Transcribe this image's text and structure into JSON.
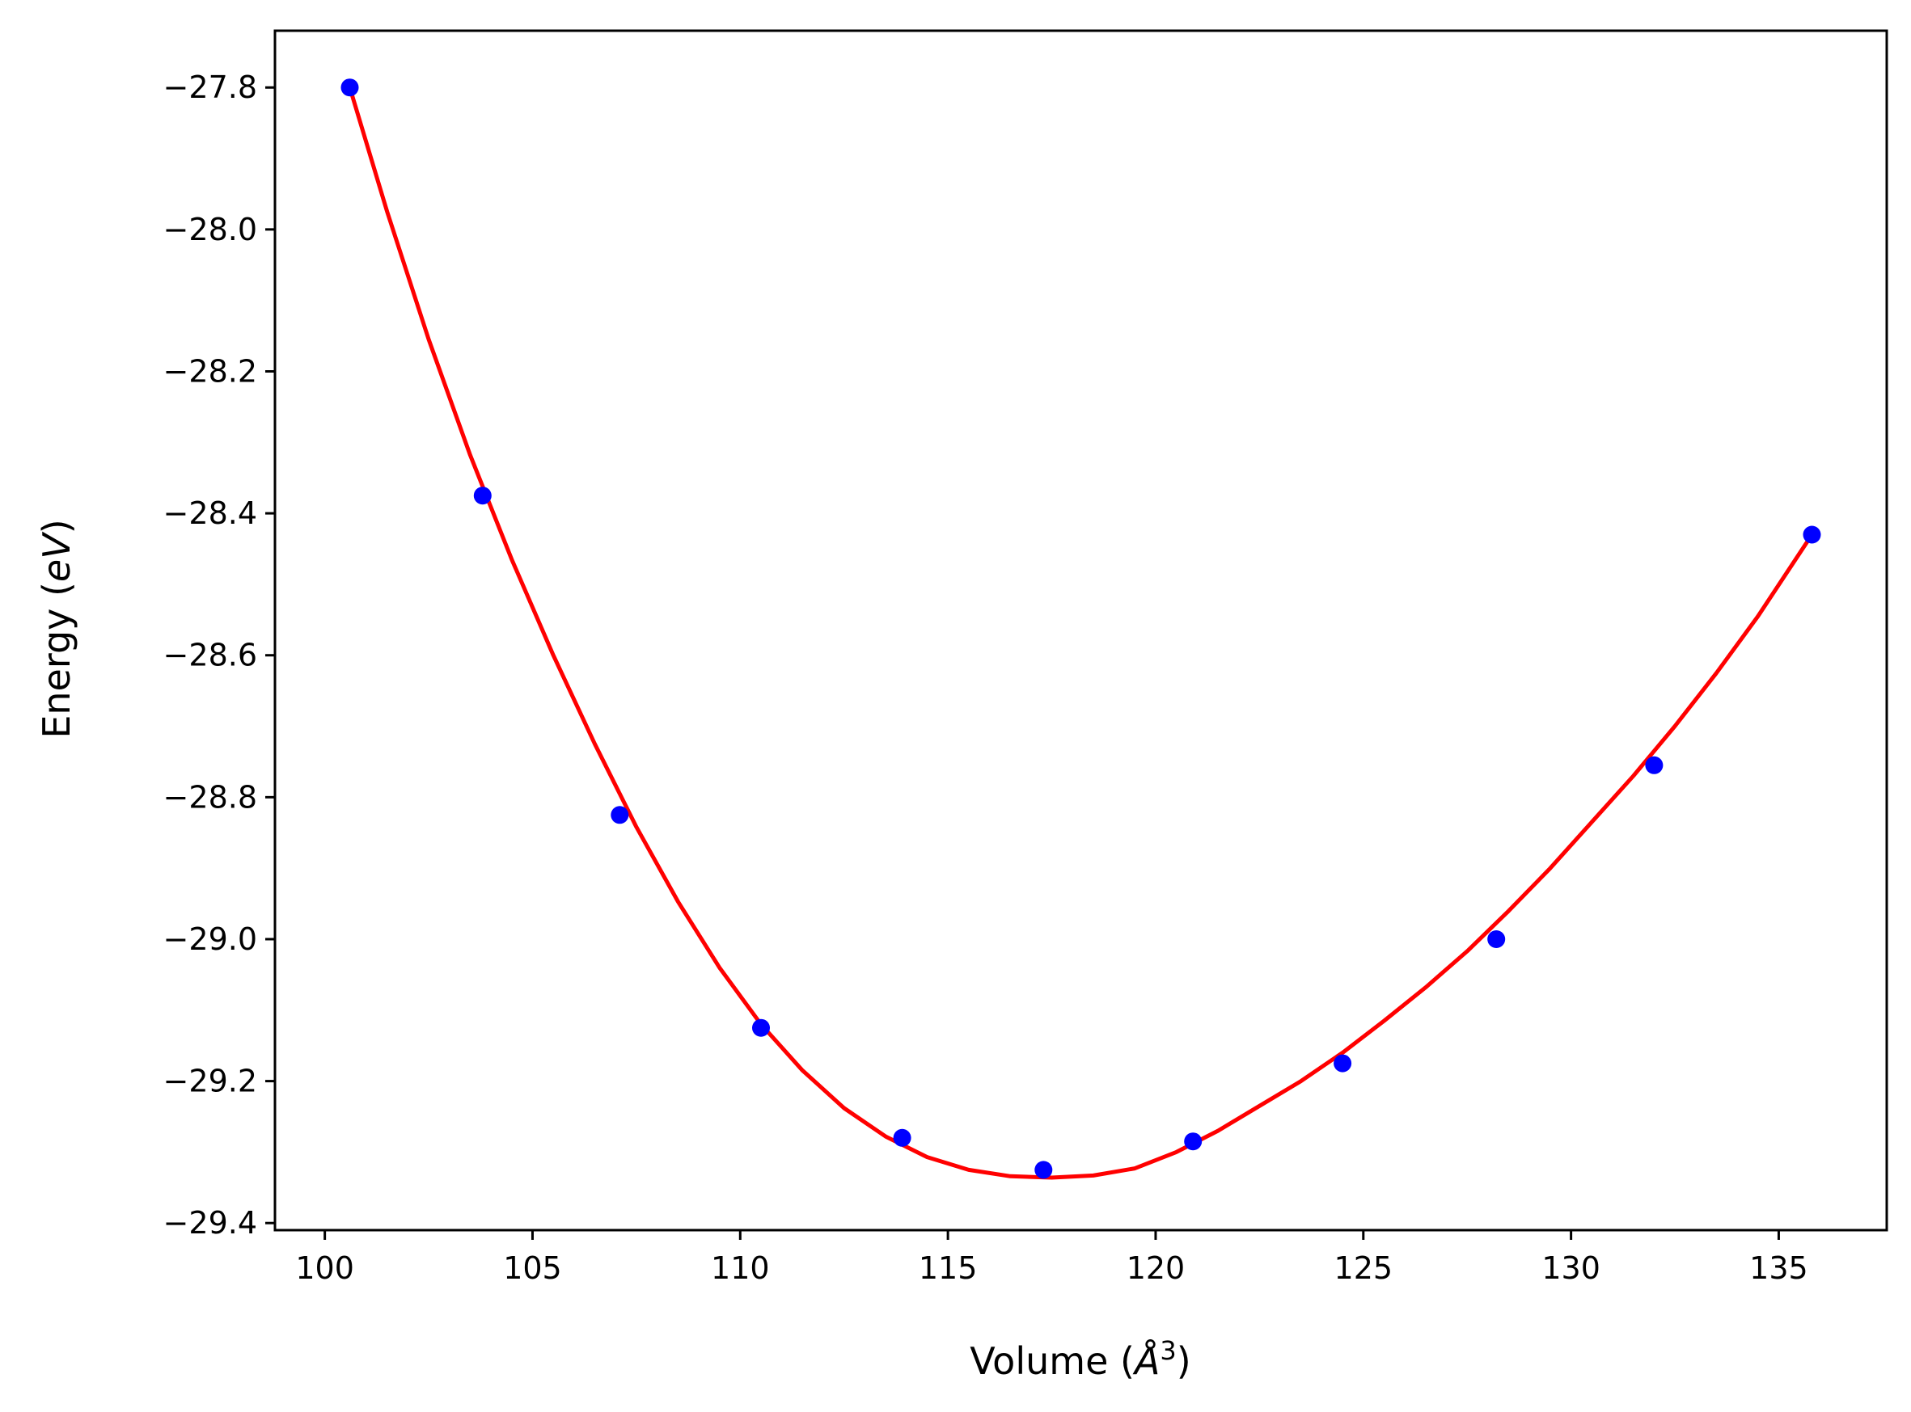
{
  "chart_data": {
    "type": "line",
    "title": "",
    "xlabel_parts": {
      "prefix": "Volume (",
      "symbol": "Å",
      "sup": "3",
      "suffix": ")"
    },
    "ylabel_parts": {
      "prefix": "Energy (",
      "unit": "eV",
      "suffix": ")"
    },
    "xlim": [
      98.8,
      137.6
    ],
    "ylim": [
      -29.41,
      -27.72
    ],
    "xticks": [
      100,
      105,
      110,
      115,
      120,
      125,
      130,
      135
    ],
    "xtick_labels": [
      "100",
      "105",
      "110",
      "115",
      "120",
      "125",
      "130",
      "135"
    ],
    "yticks": [
      -27.8,
      -28.0,
      -28.2,
      -28.4,
      -28.6,
      -28.8,
      -29.0,
      -29.2,
      -29.4
    ],
    "ytick_labels": [
      "−27.8",
      "−28.0",
      "−28.2",
      "−28.4",
      "−28.6",
      "−28.8",
      "−29.0",
      "−29.2",
      "−29.4"
    ],
    "grid": false,
    "series": [
      {
        "kind": "scatter",
        "color": "#0000ff",
        "x": [
          100.6,
          103.8,
          107.1,
          110.5,
          113.9,
          117.3,
          120.9,
          124.5,
          128.2,
          132.0,
          135.8
        ],
        "y": [
          -27.8,
          -28.375,
          -28.825,
          -29.125,
          -29.28,
          -29.325,
          -29.285,
          -29.175,
          -29.0,
          -28.755,
          -28.43
        ]
      },
      {
        "kind": "line",
        "color": "#ff0000",
        "x": [
          100.6,
          101.5,
          102.5,
          103.5,
          104.5,
          105.5,
          106.5,
          107.5,
          108.5,
          109.5,
          110.5,
          111.5,
          112.5,
          113.5,
          114.5,
          115.5,
          116.5,
          117.5,
          118.5,
          119.5,
          120.5,
          121.5,
          122.5,
          123.5,
          124.5,
          125.5,
          126.5,
          127.5,
          128.5,
          129.5,
          130.5,
          131.5,
          132.5,
          133.5,
          134.5,
          135.8
        ],
        "y": [
          -27.8,
          -27.975,
          -28.155,
          -28.318,
          -28.465,
          -28.6,
          -28.725,
          -28.842,
          -28.947,
          -29.04,
          -29.12,
          -29.185,
          -29.238,
          -29.278,
          -29.307,
          -29.325,
          -29.334,
          -29.336,
          -29.333,
          -29.323,
          -29.3,
          -29.27,
          -29.235,
          -29.2,
          -29.16,
          -29.115,
          -29.068,
          -29.017,
          -28.96,
          -28.9,
          -28.835,
          -28.77,
          -28.7,
          -28.625,
          -28.545,
          -28.43
        ]
      }
    ]
  }
}
